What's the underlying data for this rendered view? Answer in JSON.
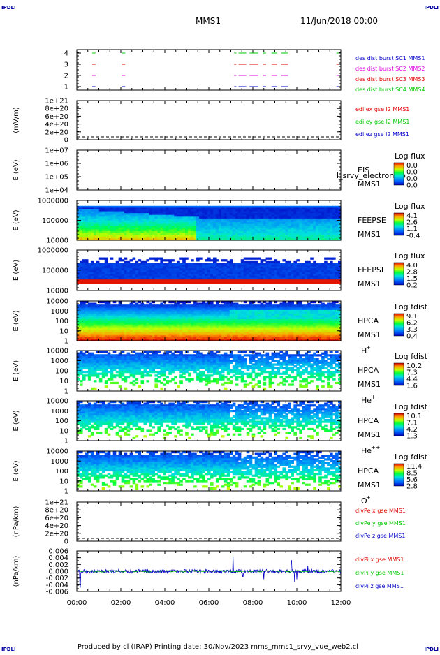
{
  "header": {
    "corner_tl": "IPDLI",
    "corner_tr": "IPDLI",
    "corner_bl": "IPDLI",
    "corner_br": "IPDLI",
    "title": "MMS1",
    "date": "11/Jun/2018 00:00"
  },
  "footer": {
    "text": "Produced by cl (IRAP)   Printing date: 30/Nov/2023   mms_mms1_srvy_vue_web2.cl"
  },
  "colors": {
    "red": "#ff0000",
    "green": "#00c800",
    "blue": "#0000c8",
    "magenta": "#e000e0"
  },
  "chart_data": [
    {
      "type": "line",
      "panel": "burst",
      "yticks": [
        "1",
        "2",
        "3",
        "4"
      ],
      "ylim": [
        0.5,
        4.5
      ],
      "legend": [
        {
          "text": "des dist burst SC1 MMS1",
          "color": "#0000c8"
        },
        {
          "text": "des dist burst SC2 MMS2",
          "color": "#e000e0"
        },
        {
          "text": "des dist burst SC3 MMS3",
          "color": "#e00000"
        },
        {
          "text": "des dist burst SC4 MMS4",
          "color": "#00c800"
        }
      ],
      "burst_intervals_hours": [
        [
          0.7,
          0.85
        ],
        [
          2.05,
          2.2
        ],
        [
          7.15,
          7.25
        ],
        [
          7.35,
          7.7
        ],
        [
          7.85,
          8.25
        ],
        [
          8.45,
          8.6
        ],
        [
          8.85,
          9.1
        ],
        [
          9.3,
          9.6
        ],
        [
          11.8,
          11.9
        ]
      ]
    },
    {
      "type": "line",
      "panel": "edi",
      "ylabel": "(mV/m)",
      "yticks": [
        "0",
        "2e+20",
        "4e+20",
        "6e+20",
        "8e+20",
        "1e+21"
      ],
      "ylim": [
        0,
        1.1e+21
      ],
      "legend": [
        {
          "text": "edi ex gse l2 MMS1",
          "color": "#e00000"
        },
        {
          "text": "edi ey gse l2 MMS1",
          "color": "#00c800"
        },
        {
          "text": "edi ez gse l2 MMS1",
          "color": "#0000c8"
        }
      ]
    },
    {
      "type": "heatmap",
      "panel": "eis",
      "ylabel": "E (eV)",
      "yticks": [
        "1e+04",
        "1e+05",
        "1e+06",
        "1e+07"
      ],
      "labels": [
        "EIS",
        "MMS1"
      ],
      "overlay_text": "l_srvy_electron_to",
      "cbar_title": "Log flux",
      "cbar_ticks": [
        "0.0",
        "0.0",
        "0.0",
        "0.0"
      ]
    },
    {
      "type": "heatmap",
      "panel": "feepse",
      "ylabel": "E (eV)",
      "yticks": [
        "10000",
        "100000",
        "1000000"
      ],
      "labels": [
        "FEEPSE",
        "MMS1"
      ],
      "cbar_title": "Log flux",
      "cbar_ticks": [
        "4.1",
        "2.6",
        "1.1",
        "-0.4"
      ]
    },
    {
      "type": "heatmap",
      "panel": "feepsi",
      "ylabel": "E (eV)",
      "yticks": [
        "10000",
        "100000",
        "1000000"
      ],
      "labels": [
        "FEEPSI",
        "MMS1"
      ],
      "cbar_title": "Log flux",
      "cbar_ticks": [
        "4.0",
        "2.8",
        "1.5",
        "0.2"
      ]
    },
    {
      "type": "heatmap",
      "panel": "hpca_h",
      "ylabel": "E (eV)",
      "yticks": [
        "1",
        "10",
        "100",
        "1000",
        "10000"
      ],
      "labels": [
        "HPCA",
        "MMS1"
      ],
      "species": "H",
      "species_sup": "+",
      "cbar_title": "Log fdist",
      "cbar_ticks": [
        "9.1",
        "6.2",
        "3.3",
        "0.4"
      ]
    },
    {
      "type": "heatmap",
      "panel": "hpca_he",
      "ylabel": "E (eV)",
      "yticks": [
        "1",
        "10",
        "100",
        "1000",
        "10000"
      ],
      "labels": [
        "HPCA",
        "MMS1"
      ],
      "species": "He",
      "species_sup": "+",
      "cbar_title": "Log fdist",
      "cbar_ticks": [
        "10.2",
        "7.3",
        "4.4",
        "1.6"
      ]
    },
    {
      "type": "heatmap",
      "panel": "hpca_hepp",
      "ylabel": "E (eV)",
      "yticks": [
        "1",
        "10",
        "100",
        "1000",
        "10000"
      ],
      "labels": [
        "HPCA",
        "MMS1"
      ],
      "species": "He",
      "species_sup": "++",
      "cbar_title": "Log fdist",
      "cbar_ticks": [
        "10.1",
        "7.1",
        "4.2",
        "1.3"
      ]
    },
    {
      "type": "heatmap",
      "panel": "hpca_o",
      "ylabel": "E (eV)",
      "yticks": [
        "1",
        "10",
        "100",
        "1000",
        "10000"
      ],
      "labels": [
        "HPCA",
        "MMS1"
      ],
      "species": "O",
      "species_sup": "+",
      "cbar_title": "Log fdist",
      "cbar_ticks": [
        "11.4",
        "8.5",
        "5.6",
        "2.8"
      ]
    },
    {
      "type": "line",
      "panel": "divpe",
      "ylabel": "(nPa/km)",
      "yticks": [
        "0",
        "2e+20",
        "4e+20",
        "6e+20",
        "8e+20",
        "1e+21"
      ],
      "ylim": [
        0,
        1.1e+21
      ],
      "legend": [
        {
          "text": "divPe x gse MMS1",
          "color": "#e00000"
        },
        {
          "text": "divPe y gse MMS1",
          "color": "#00c800"
        },
        {
          "text": "divPe z gse MMS1",
          "color": "#0000c8"
        }
      ]
    },
    {
      "type": "line",
      "panel": "divpi",
      "ylabel": "(nPa/km)",
      "yticks": [
        "-0.006",
        "-0.004",
        "-0.002",
        "0.000",
        "0.002",
        "0.004",
        "0.006"
      ],
      "ylim": [
        -0.0075,
        0.0075
      ],
      "legend": [
        {
          "text": "divPi x gse MMS1",
          "color": "#e00000"
        },
        {
          "text": "divPi y gse MMS1",
          "color": "#00c800"
        },
        {
          "text": "divPi z gse MMS1",
          "color": "#0000c8"
        }
      ],
      "spikes_hours": [
        [
          0.15,
          -0.006
        ],
        [
          7.1,
          0.006
        ],
        [
          7.55,
          -0.002
        ],
        [
          8.5,
          -0.003
        ],
        [
          9.75,
          0.004
        ],
        [
          9.9,
          -0.004
        ],
        [
          10.0,
          -0.003
        ],
        [
          10.5,
          0.002
        ]
      ]
    }
  ],
  "xaxis": {
    "ticks": [
      "00:00",
      "02:00",
      "04:00",
      "06:00",
      "08:00",
      "10:00",
      "12:00"
    ],
    "range_hours": [
      0,
      12
    ]
  }
}
